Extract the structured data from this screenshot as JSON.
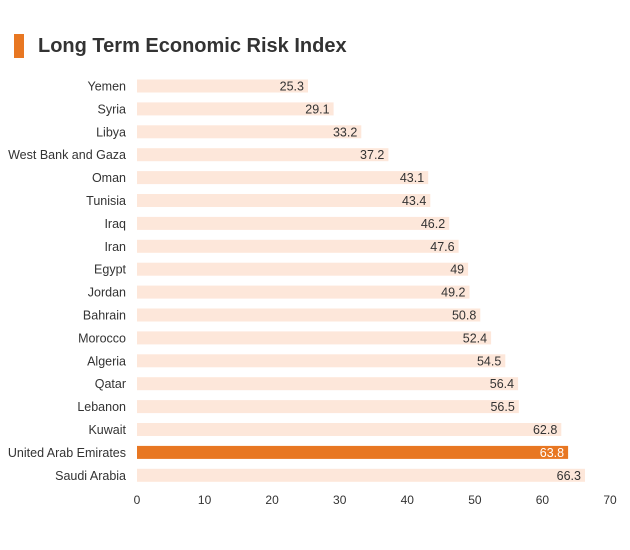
{
  "chart_data": {
    "type": "bar",
    "orientation": "horizontal",
    "title": "Long Term Economic Risk Index",
    "categories": [
      "Yemen",
      "Syria",
      "Libya",
      "West Bank and Gaza",
      "Oman",
      "Tunisia",
      "Iraq",
      "Iran",
      "Egypt",
      "Jordan",
      "Bahrain",
      "Morocco",
      "Algeria",
      "Qatar",
      "Lebanon",
      "Kuwait",
      "United Arab Emirates",
      "Saudi Arabia"
    ],
    "values": [
      25.3,
      29.1,
      33.2,
      37.2,
      43.1,
      43.4,
      46.2,
      47.6,
      49,
      49.2,
      50.8,
      52.4,
      54.5,
      56.4,
      56.5,
      62.8,
      63.8,
      66.3
    ],
    "value_labels": [
      "25.3",
      "29.1",
      "33.2",
      "37.2",
      "43.1",
      "43.4",
      "46.2",
      "47.6",
      "49",
      "49.2",
      "50.8",
      "52.4",
      "54.5",
      "56.4",
      "56.5",
      "62.8",
      "63.8",
      "66.3"
    ],
    "highlight": "United Arab Emirates",
    "xlim": [
      0,
      70
    ],
    "xticks": [
      0,
      10,
      20,
      30,
      40,
      50,
      60,
      70
    ],
    "xlabel": "",
    "ylabel": "",
    "grid": false,
    "colors": {
      "bar": "#fde7da",
      "highlight": "#e87722",
      "title_accent": "#e87722"
    }
  }
}
